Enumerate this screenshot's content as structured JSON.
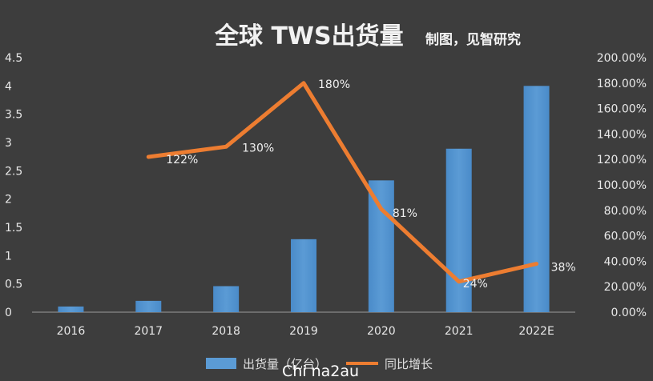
{
  "chart_data": {
    "type": "bar+line",
    "title": "全球 TWS出货量",
    "subtitle": "制图，见智研究",
    "categories": [
      "2016",
      "2017",
      "2018",
      "2019",
      "2020",
      "2021",
      "2022E"
    ],
    "series": [
      {
        "name": "出货量（亿台）",
        "type": "bar",
        "axis": "left",
        "color": "#5b9bd5",
        "values": [
          0.1,
          0.2,
          0.46,
          1.29,
          2.33,
          2.89,
          4.0
        ]
      },
      {
        "name": "同比增长",
        "type": "line",
        "axis": "right",
        "color": "#ed7d31",
        "values": [
          null,
          122,
          130,
          180,
          81,
          24,
          38
        ],
        "labels": [
          null,
          "122%",
          "130%",
          "180%",
          "81%",
          "24%",
          "38%"
        ]
      }
    ],
    "y_left": {
      "ylim": [
        0,
        4.5
      ],
      "ticks": [
        "0",
        "0.5",
        "1",
        "1.5",
        "2",
        "2.5",
        "3",
        "3.5",
        "4",
        "4.5"
      ]
    },
    "y_right": {
      "ylim": [
        0,
        200
      ],
      "ticks": [
        "0.00%",
        "20.00%",
        "40.00%",
        "60.00%",
        "80.00%",
        "100.00%",
        "120.00%",
        "140.00%",
        "160.00%",
        "180.00%",
        "200.00%"
      ]
    },
    "grid": false,
    "legend": "bottom-center"
  },
  "watermark": "Chi na2au",
  "colors": {
    "background": "#3d3d3d",
    "bar": "#5b9bd5",
    "line": "#ed7d31",
    "axis": "#9a9a9a",
    "text": "#e8e8e8"
  }
}
